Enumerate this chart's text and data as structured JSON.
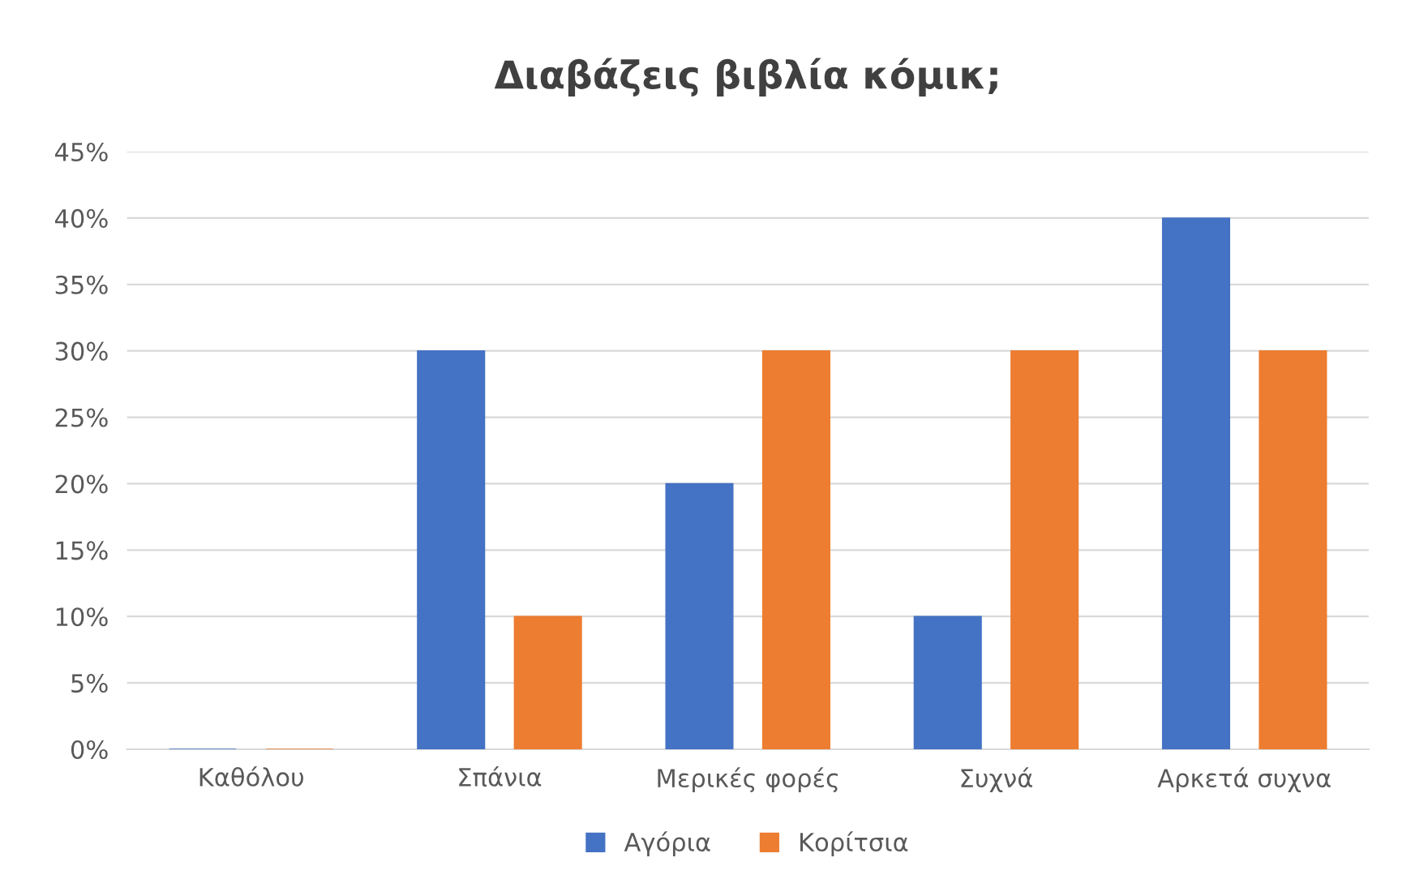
{
  "chart_data": {
    "type": "bar",
    "title": "Διαβάζεις βιβλία κόμικ;",
    "categories": [
      "Καθόλου",
      "Σπάνια",
      "Μερικές φορές",
      "Συχνά",
      "Αρκετά συχνα"
    ],
    "series": [
      {
        "name": "Αγόρια",
        "color": "#4472c4",
        "values": [
          0,
          30,
          20,
          10,
          40
        ]
      },
      {
        "name": "Κορίτσια",
        "color": "#ed7d31",
        "values": [
          0,
          10,
          30,
          30,
          30
        ]
      }
    ],
    "ylim": [
      0,
      45
    ],
    "yticks": [
      {
        "value": 0,
        "label": "0%"
      },
      {
        "value": 5,
        "label": "5%"
      },
      {
        "value": 10,
        "label": "10%"
      },
      {
        "value": 15,
        "label": "15%"
      },
      {
        "value": 20,
        "label": "20%"
      },
      {
        "value": 25,
        "label": "25%"
      },
      {
        "value": 30,
        "label": "30%"
      },
      {
        "value": 35,
        "label": "35%"
      },
      {
        "value": 40,
        "label": "40%"
      },
      {
        "value": 45,
        "label": "45%"
      }
    ],
    "grid": "y",
    "legend": "bottom"
  }
}
